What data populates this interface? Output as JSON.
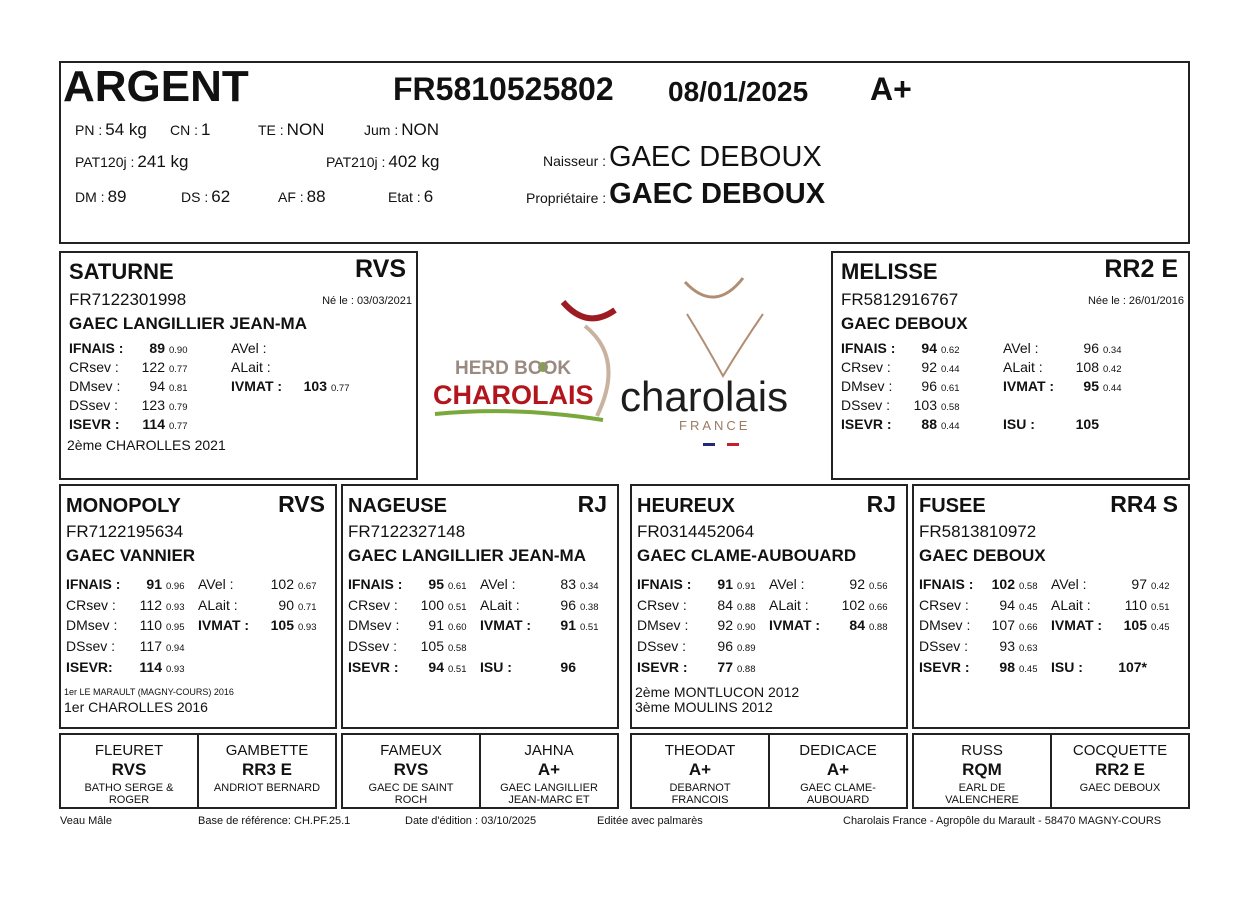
{
  "header": {
    "name": "ARGENT",
    "id": "FR5810525802",
    "date": "08/01/2025",
    "rating": "A+",
    "fields": [
      {
        "label": "PN :",
        "value": "54 kg"
      },
      {
        "label": "CN :",
        "value": "1"
      },
      {
        "label": "TE :",
        "value": "NON"
      },
      {
        "label": "Jum :",
        "value": "NON"
      },
      {
        "label": "PAT120j :",
        "value": "241 kg"
      },
      {
        "label": "PAT210j :",
        "value": "402 kg"
      },
      {
        "label": "Naisseur :",
        "value": "GAEC DEBOUX"
      },
      {
        "label": "DM :",
        "value": "89"
      },
      {
        "label": "DS :",
        "value": "62"
      },
      {
        "label": "AF :",
        "value": "88"
      },
      {
        "label": "Etat :",
        "value": "6"
      },
      {
        "label": "Propriétaire :",
        "value": "GAEC DEBOUX"
      }
    ]
  },
  "parents": [
    {
      "name": "SATURNE",
      "rating": "RVS",
      "id": "FR7122301998",
      "born": "Né le : 03/03/2021",
      "breeder": "GAEC LANGILLIER JEAN-MA",
      "left": [
        {
          "label": "IFNAIS :",
          "value": "89",
          "cd": "0.90"
        },
        {
          "label": "CRsev :",
          "value": "122",
          "cd": "0.77"
        },
        {
          "label": "DMsev :",
          "value": "94",
          "cd": "0.81"
        },
        {
          "label": "DSsev :",
          "value": "123",
          "cd": "0.79"
        },
        {
          "label": "ISEVR :",
          "value": "114",
          "cd": "0.77"
        }
      ],
      "right": [
        {
          "label": "AVel :"
        },
        {
          "label": "ALait :"
        },
        {
          "label": "IVMAT :",
          "value": "103",
          "cd": "0.77"
        }
      ],
      "palmares": [
        "2ème  CHAROLLES 2021"
      ]
    },
    {
      "name": "MELISSE",
      "rating": "RR2 E",
      "id": "FR5812916767",
      "born": "Née le : 26/01/2016",
      "breeder": "GAEC DEBOUX",
      "left": [
        {
          "label": "IFNAIS :",
          "value": "94",
          "cd": "0.62"
        },
        {
          "label": "CRsev :",
          "value": "92",
          "cd": "0.44"
        },
        {
          "label": "DMsev :",
          "value": "96",
          "cd": "0.61"
        },
        {
          "label": "DSsev :",
          "value": "103",
          "cd": "0.58"
        },
        {
          "label": "ISEVR :",
          "value": "88",
          "cd": "0.44"
        }
      ],
      "right": [
        {
          "label": "AVel :",
          "value": "96",
          "cd": "0.34"
        },
        {
          "label": "ALait :",
          "value": "108",
          "cd": "0.42"
        },
        {
          "label": "IVMAT :",
          "value": "95",
          "cd": "0.44"
        },
        {
          "label": "ISU :",
          "value": "105"
        }
      ]
    }
  ],
  "grandparents": [
    {
      "name": "MONOPOLY",
      "rating": "RVS",
      "id": "FR7122195634",
      "breeder": "GAEC VANNIER",
      "left": [
        {
          "label": "IFNAIS :",
          "value": "91",
          "cd": "0.96"
        },
        {
          "label": "CRsev :",
          "value": "112",
          "cd": "0.93"
        },
        {
          "label": "DMsev :",
          "value": "110",
          "cd": "0.95"
        },
        {
          "label": "DSsev :",
          "value": "117",
          "cd": "0.94"
        },
        {
          "label": "ISEVR:",
          "value": "114",
          "cd": "0.93"
        }
      ],
      "right": [
        {
          "label": "AVel :",
          "value": "102",
          "cd": "0.67"
        },
        {
          "label": "ALait :",
          "value": "90",
          "cd": "0.71"
        },
        {
          "label": "IVMAT :",
          "value": "105",
          "cd": "0.93"
        }
      ],
      "palmares": [
        "1er  LE MARAULT (MAGNY-COURS) 2016",
        "1er  CHAROLLES 2016"
      ]
    },
    {
      "name": "NAGEUSE",
      "rating": "RJ",
      "id": "FR7122327148",
      "breeder": "GAEC LANGILLIER JEAN-MA",
      "left": [
        {
          "label": "IFNAIS :",
          "value": "95",
          "cd": "0.61"
        },
        {
          "label": "CRsev :",
          "value": "100",
          "cd": "0.51"
        },
        {
          "label": "DMsev :",
          "value": "91",
          "cd": "0.60"
        },
        {
          "label": "DSsev :",
          "value": "105",
          "cd": "0.58"
        },
        {
          "label": "ISEVR :",
          "value": "94",
          "cd": "0.51"
        }
      ],
      "right": [
        {
          "label": "AVel :",
          "value": "83",
          "cd": "0.34"
        },
        {
          "label": "ALait :",
          "value": "96",
          "cd": "0.38"
        },
        {
          "label": "IVMAT :",
          "value": "91",
          "cd": "0.51"
        },
        {
          "label": "ISU :",
          "value": "96"
        }
      ]
    },
    {
      "name": "HEUREUX",
      "rating": "RJ",
      "id": "FR0314452064",
      "breeder": "GAEC CLAME-AUBOUARD",
      "left": [
        {
          "label": "IFNAIS :",
          "value": "91",
          "cd": "0.91"
        },
        {
          "label": "CRsev :",
          "value": "84",
          "cd": "0.88"
        },
        {
          "label": "DMsev :",
          "value": "92",
          "cd": "0.90"
        },
        {
          "label": "DSsev :",
          "value": "96",
          "cd": "0.89"
        },
        {
          "label": "ISEVR :",
          "value": "77",
          "cd": "0.88"
        }
      ],
      "right": [
        {
          "label": "AVel :",
          "value": "92",
          "cd": "0.56"
        },
        {
          "label": "ALait :",
          "value": "102",
          "cd": "0.66"
        },
        {
          "label": "IVMAT :",
          "value": "84",
          "cd": "0.88"
        }
      ],
      "palmares": [
        "2ème  MONTLUCON 2012",
        "3ème  MOULINS 2012"
      ]
    },
    {
      "name": "FUSEE",
      "rating": "RR4 S",
      "id": "FR5813810972",
      "breeder": "GAEC DEBOUX",
      "left": [
        {
          "label": "IFNAIS :",
          "value": "102",
          "cd": "0.58"
        },
        {
          "label": "CRsev :",
          "value": "94",
          "cd": "0.45"
        },
        {
          "label": "DMsev :",
          "value": "107",
          "cd": "0.66"
        },
        {
          "label": "DSsev :",
          "value": "93",
          "cd": "0.63"
        },
        {
          "label": "ISEVR :",
          "value": "98",
          "cd": "0.45"
        }
      ],
      "right": [
        {
          "label": "AVel :",
          "value": "97",
          "cd": "0.42"
        },
        {
          "label": "ALait :",
          "value": "110",
          "cd": "0.51"
        },
        {
          "label": "IVMAT :",
          "value": "105",
          "cd": "0.45"
        },
        {
          "label": "ISU :",
          "value": "107*"
        }
      ]
    }
  ],
  "great_grandparents": [
    {
      "name": "FLEURET",
      "rating": "RVS",
      "breeder": "BATHO SERGE & ROGER"
    },
    {
      "name": "GAMBETTE",
      "rating": "RR3 E",
      "breeder": "ANDRIOT BERNARD"
    },
    {
      "name": "FAMEUX",
      "rating": "RVS",
      "breeder": "GAEC DE SAINT ROCH"
    },
    {
      "name": "JAHNA",
      "rating": "A+",
      "breeder": "GAEC LANGILLIER JEAN-MARC ET"
    },
    {
      "name": "THEODAT",
      "rating": "A+",
      "breeder": "DEBARNOT FRANCOIS"
    },
    {
      "name": "DEDICACE",
      "rating": "A+",
      "breeder": "GAEC CLAME-AUBOUARD"
    },
    {
      "name": "RUSS",
      "rating": "RQM",
      "breeder": "EARL DE VALENCHERE"
    },
    {
      "name": "COCQUETTE",
      "rating": "RR2 E",
      "breeder": "GAEC DEBOUX"
    }
  ],
  "logos": {
    "herd_book": "HERD BOOK",
    "herd_book_brand": "CHAROLAIS",
    "brand": "charolais",
    "country": "FRANCE"
  },
  "footer": [
    "Veau Mâle",
    "Base de référence: CH.PF.25.1",
    "Date d'édition : 03/10/2025",
    "Editée avec palmarès",
    "Charolais France - Agropôle du Marault - 58470 MAGNY-COURS"
  ]
}
